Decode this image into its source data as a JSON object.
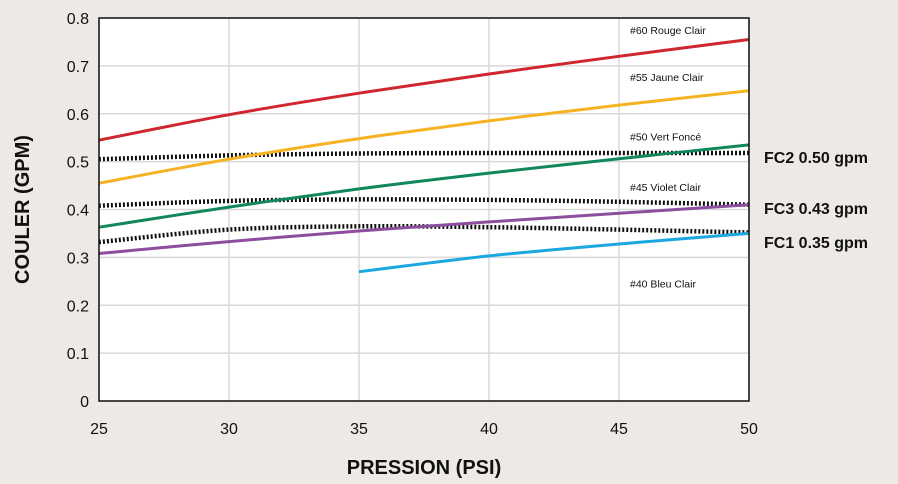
{
  "chart_data": {
    "type": "line",
    "title": "",
    "xlabel": "PRESSION (PSI)",
    "ylabel": "COULER (GPM)",
    "xlim": [
      25,
      50
    ],
    "ylim": [
      0,
      0.8
    ],
    "xticks": [
      "25",
      "30",
      "35",
      "40",
      "45",
      "50"
    ],
    "yticks": [
      "0",
      "0.1",
      "0.2",
      "0.3",
      "0.4",
      "0.5",
      "0.6",
      "0.7",
      "0.8"
    ],
    "grid": true,
    "background_color": "#ede9e4",
    "plot_color": "#ffffff",
    "series": [
      {
        "name": "#60 Rouge Clair",
        "color": "#d0262e",
        "x": [
          25,
          30,
          35,
          40,
          45,
          50
        ],
        "values": [
          0.545,
          0.598,
          0.643,
          0.683,
          0.72,
          0.755
        ]
      },
      {
        "name": "#55 Jaune Clair",
        "color": "#f5b323",
        "x": [
          25,
          30,
          35,
          40,
          45,
          50
        ],
        "values": [
          0.455,
          0.505,
          0.548,
          0.585,
          0.618,
          0.648
        ]
      },
      {
        "name": "#50 Vert Foncé",
        "color": "#12875a",
        "x": [
          25,
          30,
          35,
          40,
          45,
          50
        ],
        "values": [
          0.363,
          0.405,
          0.443,
          0.476,
          0.506,
          0.535
        ]
      },
      {
        "name": "#45 Violet Clair",
        "color": "#8d4e9e",
        "x": [
          25,
          30,
          35,
          40,
          45,
          50
        ],
        "values": [
          0.308,
          0.333,
          0.355,
          0.374,
          0.392,
          0.41
        ]
      },
      {
        "name": "#40 Bleu Clair",
        "color": "#1ba8e0",
        "x": [
          35,
          40,
          45,
          50
        ],
        "values": [
          0.27,
          0.303,
          0.328,
          0.35
        ]
      }
    ],
    "flow_controls": [
      {
        "name": "FC2 0.50 gpm",
        "color": "#111111",
        "x": [
          25,
          30,
          35,
          40,
          45,
          50
        ],
        "values": [
          0.505,
          0.513,
          0.517,
          0.518,
          0.518,
          0.518
        ]
      },
      {
        "name": "FC3 0.43 gpm",
        "color": "#111111",
        "x": [
          25,
          30,
          35,
          40,
          45,
          50
        ],
        "values": [
          0.408,
          0.418,
          0.421,
          0.42,
          0.416,
          0.41
        ]
      },
      {
        "name": "FC1 0.35 gpm",
        "color": "#111111",
        "x": [
          25,
          30,
          35,
          40,
          45,
          50
        ],
        "values": [
          0.332,
          0.358,
          0.365,
          0.363,
          0.358,
          0.352
        ]
      }
    ]
  }
}
